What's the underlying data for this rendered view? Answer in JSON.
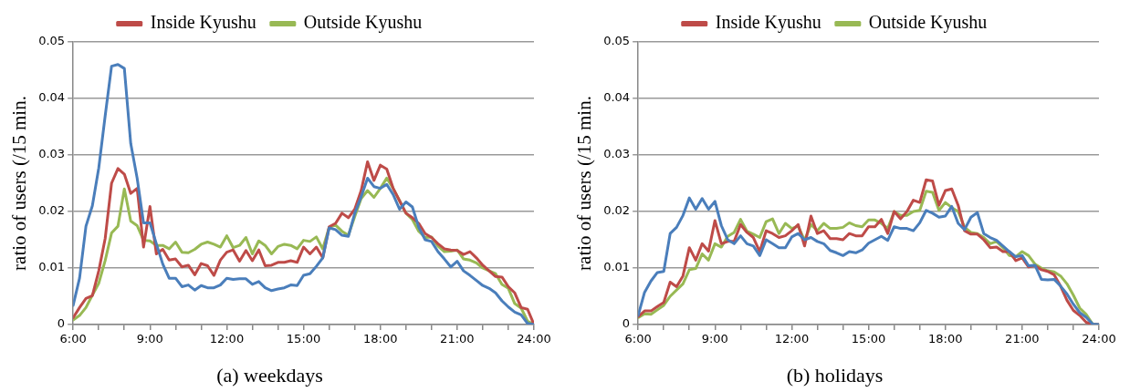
{
  "chart_data": [
    {
      "type": "line",
      "title": "(a) weekdays",
      "ylabel": "ratio of users (/15 min.",
      "legend": "top",
      "grid": "y",
      "marker": "none",
      "line_style": "solid",
      "x": [
        6,
        6.25,
        6.5,
        6.75,
        7,
        7.25,
        7.5,
        7.75,
        8,
        8.25,
        8.5,
        8.75,
        9,
        9.25,
        9.5,
        9.75,
        10,
        10.25,
        10.5,
        10.75,
        11,
        11.25,
        11.5,
        11.75,
        12,
        12.25,
        12.5,
        12.75,
        13,
        13.25,
        13.5,
        13.75,
        14,
        14.25,
        14.5,
        14.75,
        15,
        15.25,
        15.5,
        15.75,
        16,
        16.25,
        16.5,
        16.75,
        17,
        17.25,
        17.5,
        17.75,
        18,
        18.25,
        18.5,
        18.75,
        19,
        19.25,
        19.5,
        19.75,
        20,
        20.25,
        20.5,
        20.75,
        21,
        21.25,
        21.5,
        21.75,
        22,
        22.25,
        22.5,
        22.75,
        23,
        23.25,
        23.5,
        23.75,
        24
      ],
      "xlim": [
        6,
        24
      ],
      "xticks": [
        {
          "value": 6,
          "label": "6:00"
        },
        {
          "value": 7,
          "label": null
        },
        {
          "value": 8,
          "label": null
        },
        {
          "value": 9,
          "label": "9:00"
        },
        {
          "value": 10,
          "label": null
        },
        {
          "value": 11,
          "label": null
        },
        {
          "value": 12,
          "label": "12:00"
        },
        {
          "value": 13,
          "label": null
        },
        {
          "value": 14,
          "label": null
        },
        {
          "value": 15,
          "label": "15:00"
        },
        {
          "value": 16,
          "label": null
        },
        {
          "value": 17,
          "label": null
        },
        {
          "value": 18,
          "label": "18:00"
        },
        {
          "value": 19,
          "label": null
        },
        {
          "value": 20,
          "label": null
        },
        {
          "value": 21,
          "label": "21:00"
        },
        {
          "value": 22,
          "label": null
        },
        {
          "value": 23,
          "label": null
        },
        {
          "value": 24,
          "label": "24:00"
        }
      ],
      "ylim": [
        0,
        0.05
      ],
      "yticks": [
        0,
        0.01,
        0.02,
        0.03,
        0.04,
        0.05
      ],
      "series": [
        {
          "color": "#4a7ebb",
          "values": [
            0.0034,
            0.0082,
            0.0174,
            0.021,
            0.0277,
            0.0369,
            0.0457,
            0.046,
            0.0453,
            0.032,
            0.0259,
            0.018,
            0.018,
            0.0143,
            0.0107,
            0.0082,
            0.0082,
            0.0067,
            0.007,
            0.0061,
            0.0069,
            0.0065,
            0.0065,
            0.007,
            0.0082,
            0.008,
            0.0081,
            0.0081,
            0.0071,
            0.0076,
            0.0065,
            0.006,
            0.0063,
            0.0065,
            0.007,
            0.0069,
            0.0087,
            0.009,
            0.0103,
            0.0118,
            0.0171,
            0.0168,
            0.0158,
            0.0156,
            0.0197,
            0.0226,
            0.0259,
            0.0244,
            0.0241,
            0.0248,
            0.023,
            0.0204,
            0.0217,
            0.0208,
            0.0172,
            0.015,
            0.0147,
            0.0129,
            0.0116,
            0.0102,
            0.0112,
            0.0095,
            0.0087,
            0.0078,
            0.0069,
            0.0064,
            0.0056,
            0.0042,
            0.0031,
            0.0022,
            0.0017,
            0.0002,
            0
          ]
        },
        {
          "name": "Inside Kyushu",
          "color": "#be4b48",
          "values": [
            0.0012,
            0.003,
            0.0046,
            0.0051,
            0.0095,
            0.0152,
            0.025,
            0.0276,
            0.0266,
            0.0232,
            0.0241,
            0.0137,
            0.0209,
            0.0125,
            0.0133,
            0.0114,
            0.0116,
            0.0102,
            0.0105,
            0.0088,
            0.0108,
            0.0104,
            0.0087,
            0.0114,
            0.0128,
            0.0132,
            0.0112,
            0.0131,
            0.0113,
            0.0132,
            0.0104,
            0.0105,
            0.011,
            0.011,
            0.0113,
            0.011,
            0.0137,
            0.0125,
            0.0137,
            0.0118,
            0.0173,
            0.0179,
            0.0197,
            0.0189,
            0.0204,
            0.0237,
            0.0288,
            0.0255,
            0.0282,
            0.0275,
            0.0241,
            0.0219,
            0.0197,
            0.0189,
            0.0179,
            0.0161,
            0.0154,
            0.0143,
            0.0134,
            0.0132,
            0.0131,
            0.0124,
            0.0129,
            0.0118,
            0.0105,
            0.0095,
            0.0085,
            0.0084,
            0.0067,
            0.0056,
            0.003,
            0.0027,
            0
          ]
        },
        {
          "name": "Outside Kyushu",
          "color": "#98b954",
          "values": [
            0.0008,
            0.0016,
            0.003,
            0.0052,
            0.0073,
            0.0113,
            0.0162,
            0.0174,
            0.024,
            0.0183,
            0.0175,
            0.0149,
            0.0148,
            0.014,
            0.014,
            0.0134,
            0.0146,
            0.0128,
            0.0127,
            0.0133,
            0.0142,
            0.0146,
            0.0142,
            0.0137,
            0.0157,
            0.0136,
            0.014,
            0.0154,
            0.0125,
            0.0148,
            0.014,
            0.0125,
            0.0138,
            0.0142,
            0.014,
            0.0134,
            0.0149,
            0.0147,
            0.0155,
            0.0134,
            0.0172,
            0.0176,
            0.0165,
            0.0158,
            0.0191,
            0.0223,
            0.0237,
            0.0225,
            0.0241,
            0.0259,
            0.0241,
            0.0219,
            0.0197,
            0.0186,
            0.0165,
            0.0154,
            0.0155,
            0.0139,
            0.0129,
            0.013,
            0.0132,
            0.0116,
            0.0114,
            0.0109,
            0.01,
            0.0095,
            0.009,
            0.0071,
            0.0064,
            0.0037,
            0.0029,
            0.0006,
            0
          ]
        }
      ]
    },
    {
      "type": "line",
      "title": "(b) holidays",
      "ylabel": "ratio of users (/15 min.",
      "legend": "top",
      "grid": "y",
      "marker": "none",
      "line_style": "solid",
      "x": [
        6,
        6.25,
        6.5,
        6.75,
        7,
        7.25,
        7.5,
        7.75,
        8,
        8.25,
        8.5,
        8.75,
        9,
        9.25,
        9.5,
        9.75,
        10,
        10.25,
        10.5,
        10.75,
        11,
        11.25,
        11.5,
        11.75,
        12,
        12.25,
        12.5,
        12.75,
        13,
        13.25,
        13.5,
        13.75,
        14,
        14.25,
        14.5,
        14.75,
        15,
        15.25,
        15.5,
        15.75,
        16,
        16.25,
        16.5,
        16.75,
        17,
        17.25,
        17.5,
        17.75,
        18,
        18.25,
        18.5,
        18.75,
        19,
        19.25,
        19.5,
        19.75,
        20,
        20.25,
        20.5,
        20.75,
        21,
        21.25,
        21.5,
        21.75,
        22,
        22.25,
        22.5,
        22.75,
        23,
        23.25,
        23.5,
        23.75,
        24
      ],
      "xlim": [
        6,
        24
      ],
      "xticks": [
        {
          "value": 6,
          "label": "6:00"
        },
        {
          "value": 7,
          "label": null
        },
        {
          "value": 8,
          "label": null
        },
        {
          "value": 9,
          "label": "9:00"
        },
        {
          "value": 10,
          "label": null
        },
        {
          "value": 11,
          "label": null
        },
        {
          "value": 12,
          "label": "12:00"
        },
        {
          "value": 13,
          "label": null
        },
        {
          "value": 14,
          "label": null
        },
        {
          "value": 15,
          "label": "15:00"
        },
        {
          "value": 16,
          "label": null
        },
        {
          "value": 17,
          "label": null
        },
        {
          "value": 18,
          "label": "18:00"
        },
        {
          "value": 19,
          "label": null
        },
        {
          "value": 20,
          "label": null
        },
        {
          "value": 21,
          "label": "21:00"
        },
        {
          "value": 22,
          "label": null
        },
        {
          "value": 23,
          "label": null
        },
        {
          "value": 24,
          "label": "24:00"
        }
      ],
      "ylim": [
        0,
        0.05
      ],
      "yticks": [
        0,
        0.01,
        0.02,
        0.03,
        0.04,
        0.05
      ],
      "series": [
        {
          "color": "#4a7ebb",
          "values": [
            0.0016,
            0.0057,
            0.0077,
            0.0092,
            0.0094,
            0.0161,
            0.0172,
            0.0193,
            0.0224,
            0.0204,
            0.0223,
            0.0204,
            0.0218,
            0.0175,
            0.015,
            0.0143,
            0.0157,
            0.0143,
            0.0139,
            0.0122,
            0.015,
            0.0143,
            0.0136,
            0.0136,
            0.0155,
            0.0161,
            0.015,
            0.0154,
            0.0147,
            0.0143,
            0.0131,
            0.0127,
            0.0122,
            0.0129,
            0.0127,
            0.0132,
            0.0144,
            0.015,
            0.0156,
            0.0149,
            0.0173,
            0.017,
            0.017,
            0.0166,
            0.018,
            0.0202,
            0.0197,
            0.019,
            0.0192,
            0.0209,
            0.0179,
            0.0168,
            0.019,
            0.0198,
            0.0161,
            0.0154,
            0.0149,
            0.0139,
            0.0129,
            0.012,
            0.0122,
            0.0104,
            0.0105,
            0.008,
            0.0079,
            0.008,
            0.0068,
            0.0054,
            0.0036,
            0.0021,
            0.0013,
            0.0001,
            0
          ]
        },
        {
          "name": "Inside Kyushu",
          "color": "#be4b48",
          "values": [
            0.0014,
            0.0024,
            0.0024,
            0.0032,
            0.0039,
            0.0075,
            0.0067,
            0.0086,
            0.0136,
            0.0114,
            0.0143,
            0.013,
            0.0184,
            0.0143,
            0.0147,
            0.0147,
            0.0177,
            0.0163,
            0.0154,
            0.0129,
            0.0166,
            0.0161,
            0.0154,
            0.0157,
            0.0166,
            0.0177,
            0.0139,
            0.0192,
            0.0161,
            0.0166,
            0.0152,
            0.0152,
            0.015,
            0.0161,
            0.0157,
            0.0157,
            0.0173,
            0.0173,
            0.0186,
            0.0161,
            0.02,
            0.0187,
            0.02,
            0.022,
            0.0216,
            0.0256,
            0.0254,
            0.0211,
            0.0237,
            0.024,
            0.0211,
            0.0166,
            0.016,
            0.016,
            0.015,
            0.0136,
            0.0137,
            0.0129,
            0.0129,
            0.0113,
            0.0118,
            0.0102,
            0.0104,
            0.0097,
            0.0094,
            0.0088,
            0.0068,
            0.0043,
            0.0025,
            0.0016,
            0.0004,
            0,
            0
          ]
        },
        {
          "name": "Outside Kyushu",
          "color": "#98b954",
          "values": [
            0.0012,
            0.0019,
            0.0018,
            0.0026,
            0.0034,
            0.005,
            0.0061,
            0.0072,
            0.0097,
            0.0099,
            0.0125,
            0.0114,
            0.0143,
            0.0137,
            0.0156,
            0.0163,
            0.0186,
            0.0165,
            0.016,
            0.0154,
            0.0182,
            0.0187,
            0.0161,
            0.0179,
            0.017,
            0.0174,
            0.0149,
            0.0177,
            0.0166,
            0.0179,
            0.017,
            0.017,
            0.0172,
            0.018,
            0.0175,
            0.0173,
            0.0185,
            0.0185,
            0.0179,
            0.017,
            0.02,
            0.0193,
            0.0193,
            0.02,
            0.0202,
            0.0236,
            0.0234,
            0.0202,
            0.0216,
            0.0207,
            0.02,
            0.0172,
            0.0163,
            0.0161,
            0.0154,
            0.0143,
            0.0147,
            0.0136,
            0.0122,
            0.012,
            0.0129,
            0.0122,
            0.0107,
            0.01,
            0.0095,
            0.0093,
            0.0086,
            0.0072,
            0.0052,
            0.0029,
            0.0018,
            0.0001,
            0
          ]
        }
      ]
    }
  ]
}
